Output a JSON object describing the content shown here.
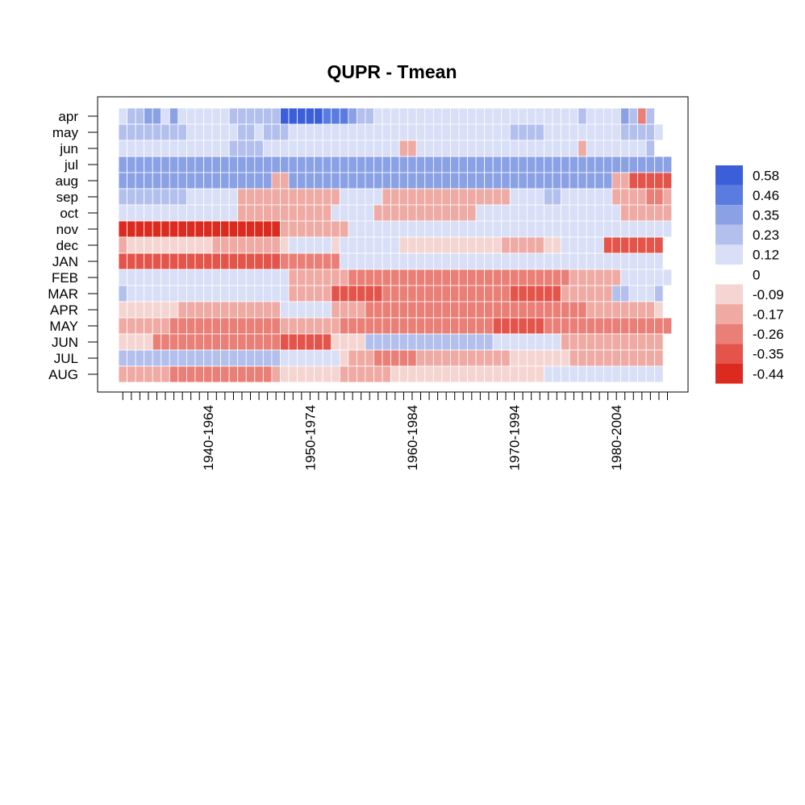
{
  "chart_data": {
    "type": "heatmap",
    "title": "QUPR - Tmean",
    "rows": [
      "apr",
      "may",
      "jun",
      "jul",
      "aug",
      "sep",
      "oct",
      "nov",
      "dec",
      "JAN",
      "FEB",
      "MAR",
      "APR",
      "MAY",
      "JUN",
      "JUL",
      "AUG"
    ],
    "x_tick_labels": [
      "1940-1964",
      "1950-1974",
      "1960-1984",
      "1970-1994",
      "1980-2004"
    ],
    "legend": {
      "values": [
        "0.58",
        "0.46",
        "0.35",
        "0.23",
        "0.12",
        "0",
        "-0.09",
        "-0.17",
        "-0.26",
        "-0.35",
        "-0.44"
      ],
      "colors": [
        "#3a5fd8",
        "#5a7be0",
        "#8ba1e6",
        "#b3c0ee",
        "#d8dff7",
        "#ffffff",
        "#f5d5d2",
        "#efaaa4",
        "#e97f76",
        "#e4544a",
        "#dc2b1e"
      ]
    },
    "palette": {
      "neg": [
        "#f5d5d2",
        "#efaaa4",
        "#e97f76",
        "#e4544a",
        "#dc2b1e"
      ],
      "pos": [
        "#d8dff7",
        "#b3c0ee",
        "#8ba1e6",
        "#5a7be0",
        "#3a5fd8"
      ]
    },
    "matrix": [
      "abbccacaaaaaabbbbbbeeeeedddcbbaaaaaaaaaaaaaaaaaaaaaaaabaaaacbCb",
      "bbbbbbbbaaaaaabbabbbaaaaaaaaaaaaaaaaaaaaaaaaaabbbbaaaaaaaaabbbba",
      "aaaaaaaaaaaaabbbbaaaaaaaaaaaaaaaaBBaaaaaaaaaaaaaaaaaaaBaaaaaaab",
      "ccccccccccccccccccccccccccccccccccccccccccccccccccccccccccccccccca",
      "ccccccccccccccccccBBccccccccccccccccccccccccccccccccccccccBBDDDDDD",
      "bbbbbbbbaaaaaaBBBBBBBBBBBBaaaaaBBBBBBBBBBBBBBBaaaabbaaaaaaBBBBCCB",
      "aaaaaaaaaaaaaaBBBBBBBBBBBaaaaaBBBBBBBBBBBBaaaaaaaaaaaaaaaaaBBBBBB",
      "EEEEEEEEEEEEEEEEEEEBBBBBBBBaaaaaaaaaaaaaaaaaaaaaaaaaaaaaaaaaaaaaa",
      "BAAAAAAAAAABBBBBBBBAaaaaaAaaaaaaaAAAAAAAAAAAABBBBBAAaaaaaDDDDDDD",
      "DDDDDDDDDDDDDDDDDDDCCCCCCCaaaaaaaaaaaaaaaaaaaaaaaaaaaaaaaaaaaaaa",
      "aaaaaaaaaaaaaaaaaaaaBBBBBBBCCCCCCCCCCCCCCCCCCCCCCCCCCBBBBBBaaaaaa",
      "baaaaaaaaaaaaaaaaaaaBBBBBDDDDDDCCCCCCCCCCCCCCCDDDDDDBBBBBBbbaaab",
      "AAAAAAABBBBBBBBBBBBaaaaaaBBBBCCCCCCCCCCCCCCCCCCCCCCCCCCBBBBBBBBA",
      "BBBBBBCCCCCCCCCCCCCBBBBBBBCCCCCCCCCCCCCCCCCCDDDDDDCCCCCCCCCCCCCCC",
      "AAAACCCCCCCCCCCCCCCDDDDDDAAAAbbbbbbbbbbbbbbbaaaaaaaaBBBBBBBBBBBB",
      "bbbbbbbbbbbbbbbbbbbaaaaaaaABBBCCCCCBBBBBBBBBBBAAAAAAABBBBBBBBBBB",
      "BBBBBBCCCCCCCCCCCCBAAAAAAABBBBBBAAAAAAAAAAAAAAAAAAaaaaaaaaaaaaaa"
    ]
  }
}
